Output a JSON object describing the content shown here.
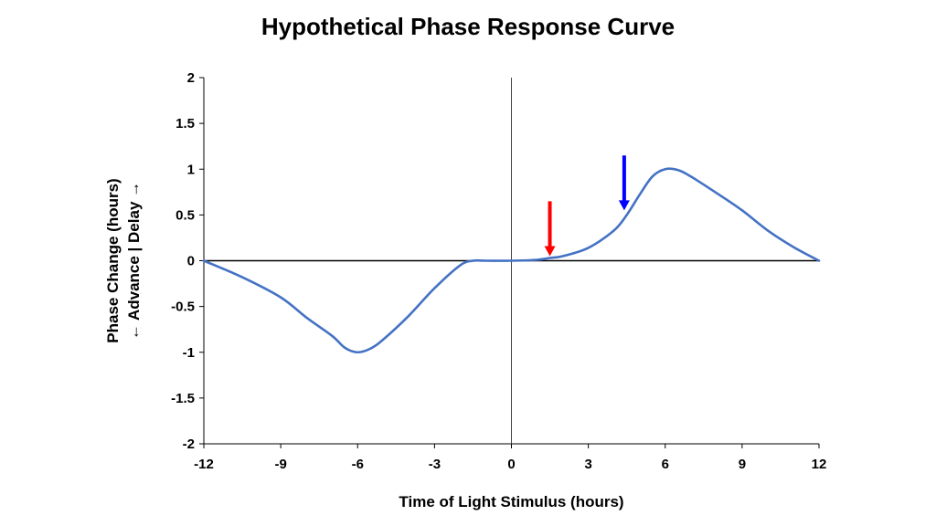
{
  "chart_data": {
    "type": "line",
    "title": "Hypothetical Phase Response Curve",
    "xlabel": "Time of Light Stimulus (hours)",
    "ylabel": "Phase Change (hours)",
    "ylabel_sub": "← Advance | Delay →",
    "xlim": [
      -12,
      12
    ],
    "ylim": [
      -2,
      2
    ],
    "xticks": [
      -12,
      -9,
      -6,
      -3,
      0,
      3,
      6,
      9,
      12
    ],
    "xtick_labels": [
      "-12",
      "-9",
      "-6",
      "-3",
      "0",
      "3",
      "6",
      "9",
      "12"
    ],
    "yticks": [
      -2,
      -1.5,
      -1,
      -0.5,
      0,
      0.5,
      1,
      1.5,
      2
    ],
    "ytick_labels": [
      "-2",
      "-1.5",
      "-1",
      "-0.5",
      "0",
      "0.5",
      "1",
      "1.5",
      "2"
    ],
    "grid": false,
    "series": [
      {
        "color": "#4472C4",
        "x": [
          -12,
          -10.5,
          -9,
          -8,
          -7,
          -6.5,
          -6,
          -5.5,
          -5,
          -4,
          -3,
          -2,
          -1.5,
          -1,
          0,
          1,
          1.5,
          2,
          3,
          4,
          4.5,
          5,
          5.5,
          6,
          6.5,
          7,
          8,
          9,
          10,
          11,
          12
        ],
        "y": [
          0,
          -0.18,
          -0.4,
          -0.62,
          -0.82,
          -0.95,
          -1.0,
          -0.96,
          -0.86,
          -0.6,
          -0.3,
          -0.05,
          0,
          0,
          0,
          0.01,
          0.03,
          0.05,
          0.14,
          0.33,
          0.5,
          0.72,
          0.92,
          1.0,
          0.99,
          0.92,
          0.74,
          0.55,
          0.33,
          0.15,
          0
        ]
      }
    ],
    "annotations": [
      {
        "type": "arrow",
        "color": "#ff0000",
        "x": 1.5,
        "y_from": 0.65,
        "y_to": 0.05
      },
      {
        "type": "arrow",
        "color": "#0000ff",
        "x": 4.4,
        "y_from": 1.15,
        "y_to": 0.55
      }
    ]
  }
}
